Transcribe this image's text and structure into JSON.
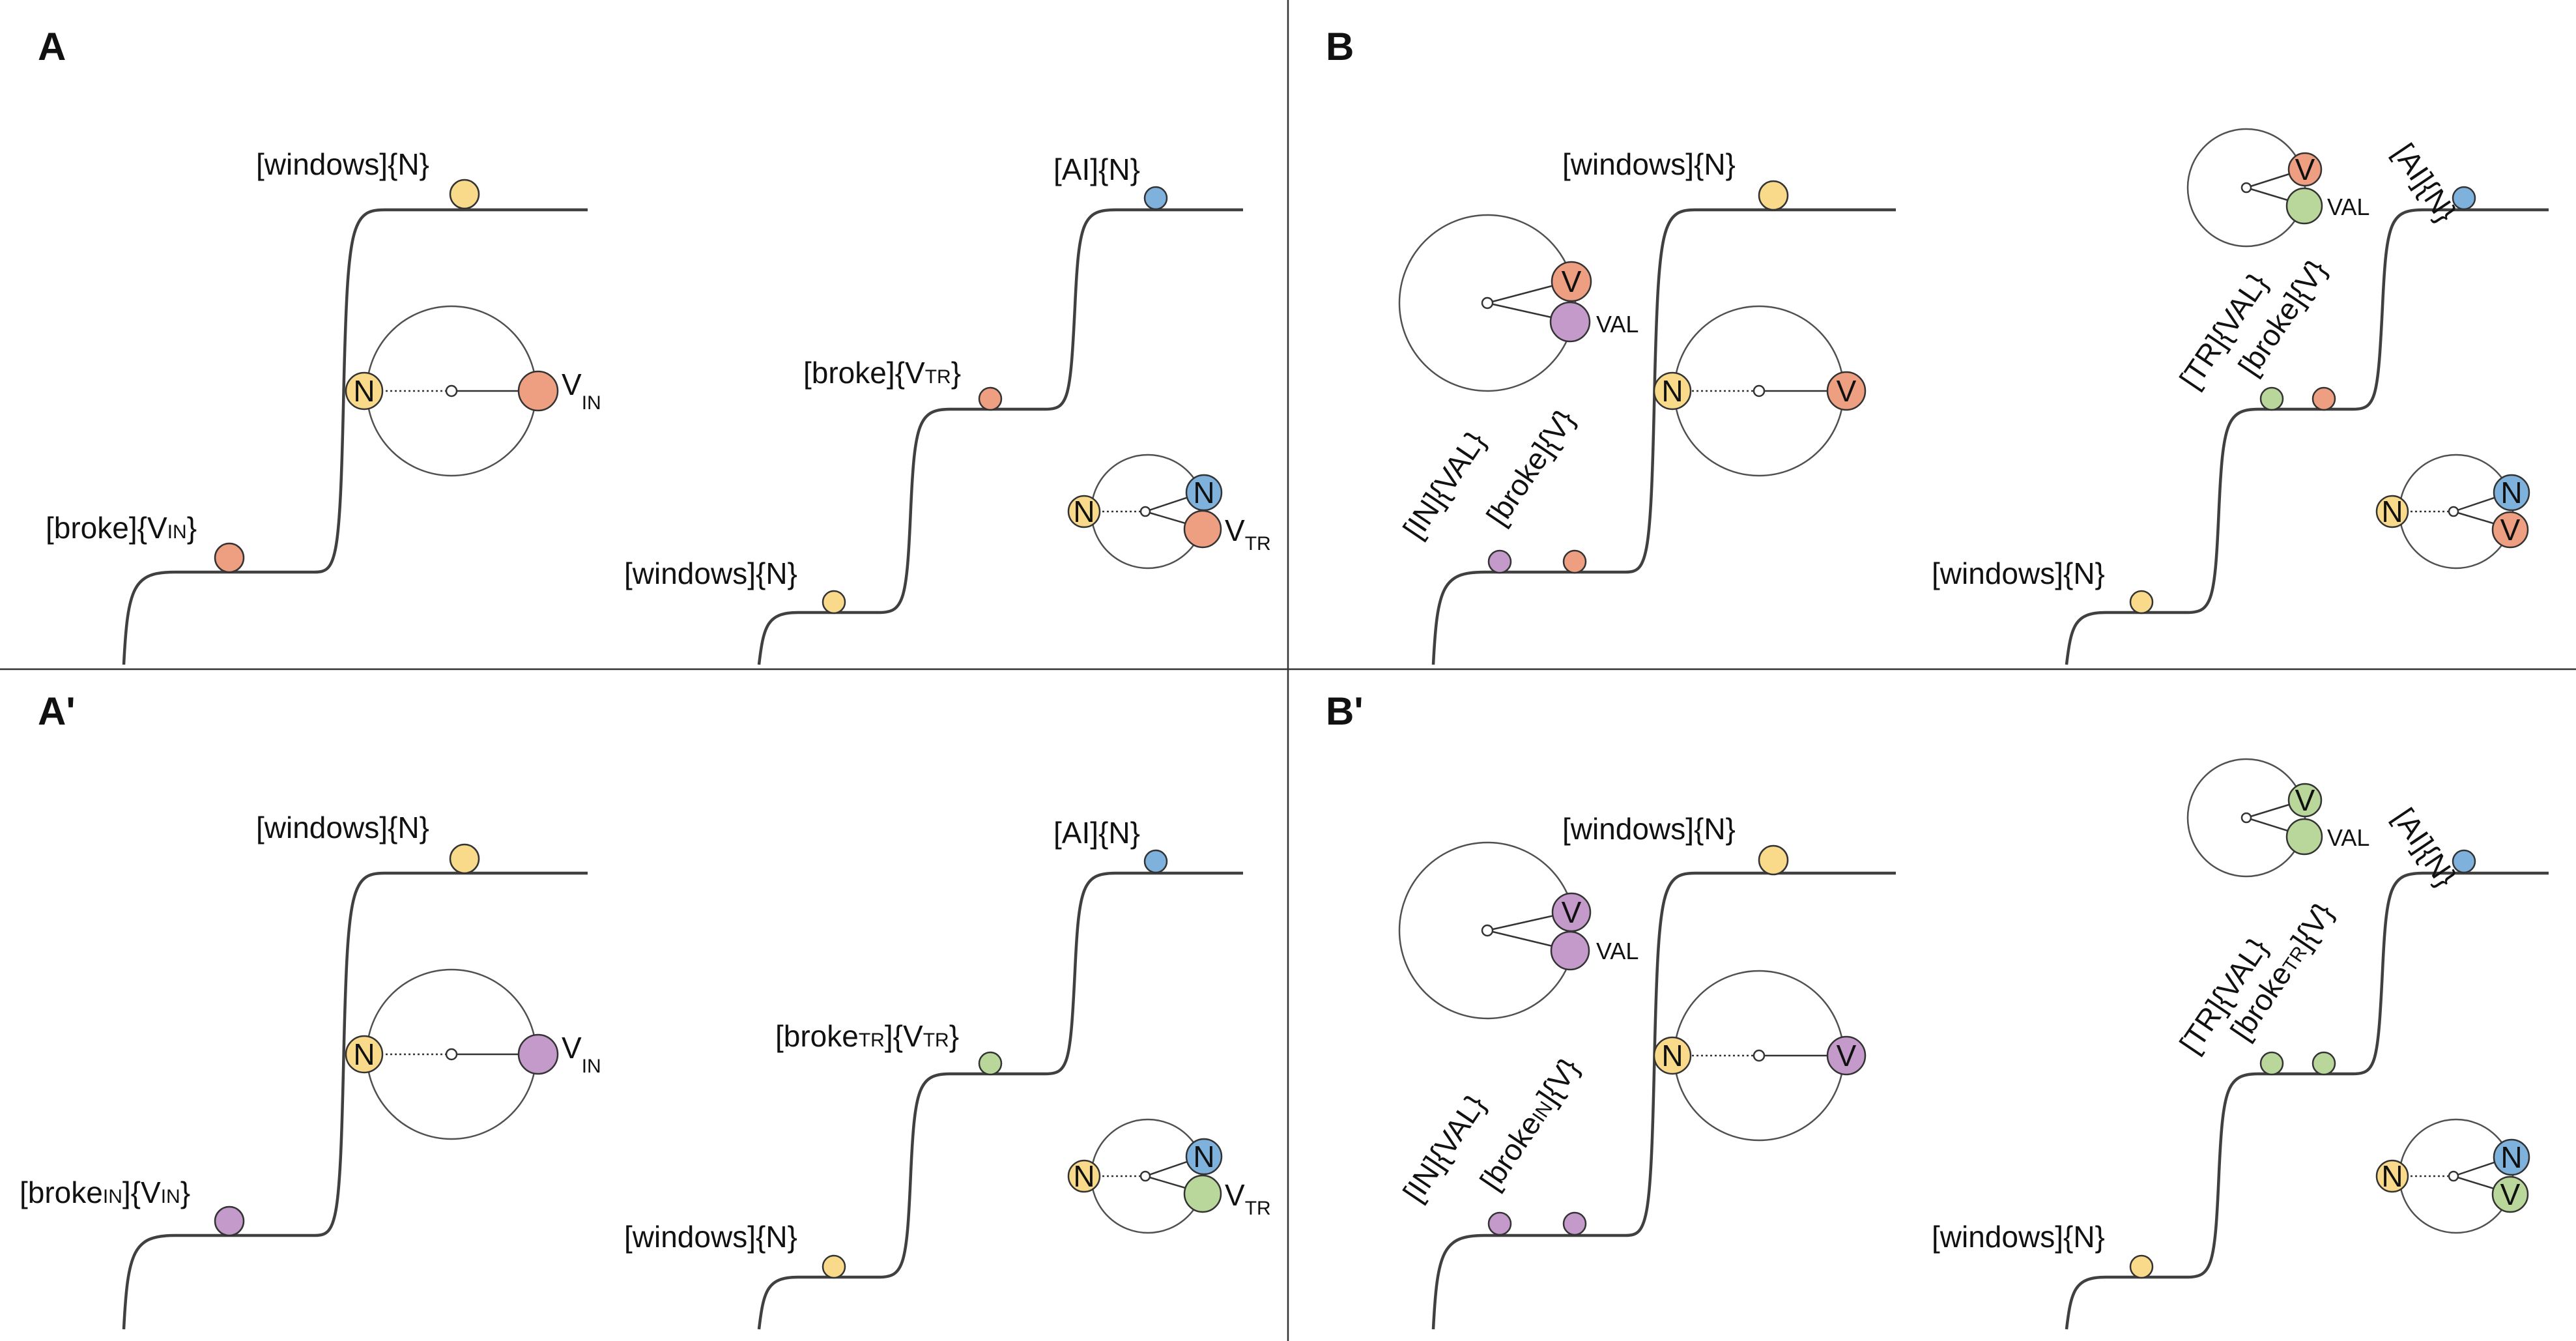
{
  "colors": {
    "N_yellow": "#F9D98A",
    "V_orange": "#EE9F82",
    "V_purple": "#C49ACB",
    "VAL_green": "#B9D79A",
    "N_blue": "#7EB2DD"
  },
  "panels": {
    "A": {
      "letter": "A",
      "left": {
        "top_label": "[windows]{N}",
        "bottom_label_pre": "[broke]{V",
        "bottom_label_sub": "IN",
        "bottom_label_post": "}",
        "circle_left": "N",
        "circle_right_main": "V",
        "circle_right_sub": "IN"
      },
      "right": {
        "top_label": "[AI]{N}",
        "mid_label_pre": "[broke]{V",
        "mid_label_sub": "TR",
        "mid_label_post": "}",
        "bottom_label": "[windows]{N}",
        "circle_left": "N",
        "circle_top": "N",
        "circle_bottom_main": "V",
        "circle_bottom_sub": "TR"
      }
    },
    "B": {
      "letter": "B",
      "left": {
        "top_label": "[windows]{N}",
        "rot_label_1": "[IN]{VAL}",
        "rot_label_2": "[broke]{V}",
        "upper_circle_top": "V",
        "upper_circle_val": "VAL",
        "circle_left": "N",
        "circle_right": "V"
      },
      "right": {
        "top_label": "[AI]{N}",
        "rot_label_1": "[TR]{VAL}",
        "rot_label_2": "[broke]{V}",
        "bottom_label": "[windows]{N}",
        "upper_circle_top": "V",
        "upper_circle_val": "VAL",
        "circle_left": "N",
        "circle_top": "N",
        "circle_bottom": "V"
      }
    },
    "A2": {
      "letter": "A'",
      "left": {
        "top_label": "[windows]{N}",
        "bottom_label_pre": "[broke",
        "bottom_label_sub1": "IN",
        "bottom_label_mid": "]{V",
        "bottom_label_sub2": "IN",
        "bottom_label_post": "}",
        "circle_left": "N",
        "circle_right_main": "V",
        "circle_right_sub": "IN"
      },
      "right": {
        "top_label": "[AI]{N}",
        "mid_label_pre": "[broke",
        "mid_label_sub1": "TR",
        "mid_label_mid": "]{V",
        "mid_label_sub2": "TR",
        "mid_label_post": "}",
        "bottom_label": "[windows]{N}",
        "circle_left": "N",
        "circle_top": "N",
        "circle_bottom_main": "V",
        "circle_bottom_sub": "TR"
      }
    },
    "B2": {
      "letter": "B'",
      "left": {
        "top_label": "[windows]{N}",
        "rot_label_1": "[IN]{VAL}",
        "rot_label_2_pre": "[broke",
        "rot_label_2_sub": "IN",
        "rot_label_2_post": "]{V}",
        "upper_circle_top": "V",
        "upper_circle_val": "VAL",
        "circle_left": "N",
        "circle_right": "V"
      },
      "right": {
        "top_label": "[AI]{N}",
        "rot_label_1": "[TR]{VAL}",
        "rot_label_2_pre": "[broke",
        "rot_label_2_sub": "TR",
        "rot_label_2_post": "]{V}",
        "bottom_label": "[windows]{N}",
        "upper_circle_top": "V",
        "upper_circle_val": "VAL",
        "circle_left": "N",
        "circle_top": "N",
        "circle_bottom": "V"
      }
    }
  }
}
